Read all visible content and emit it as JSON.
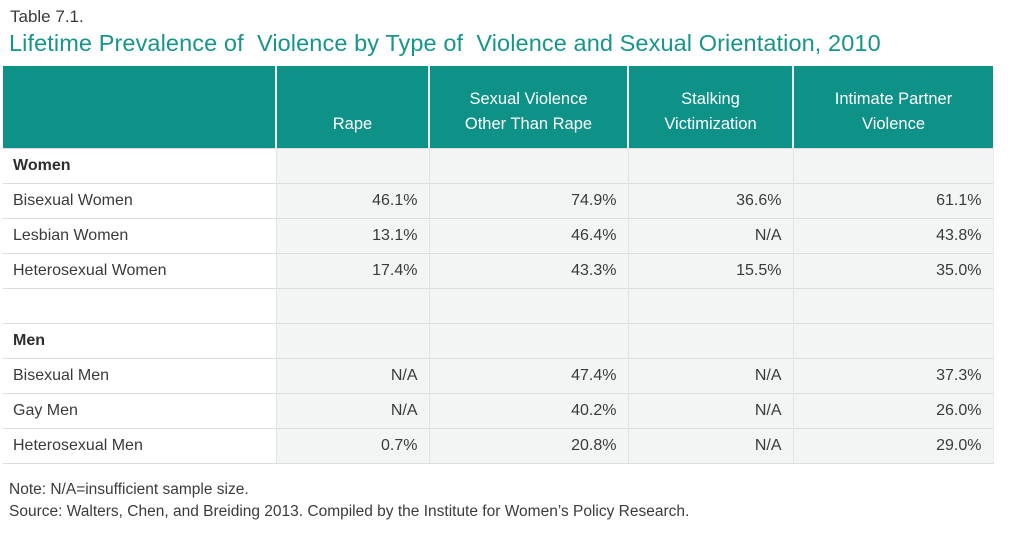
{
  "page": {
    "kicker": "Table 7.1.",
    "title": "Lifetime Prevalence of  Violence by Type of  Violence and Sexual Orientation, 2010",
    "note": "Note: N/A=insufficient sample size.",
    "source": "Source: Walters, Chen, and Breiding 2013. Compiled by the Institute for Women’s Policy Research."
  },
  "colors": {
    "header_bg": "#0E9187",
    "title_text": "#17958B",
    "cell_bg": "#F3F5F4",
    "row_border": "#DCDEDD",
    "body_text": "#3A3A3A"
  },
  "table": {
    "columns": [
      "",
      "Rape",
      "Sexual Violence\nOther Than Rape",
      "Stalking\nVictimization",
      "Intimate Partner\nViolence"
    ],
    "rows": [
      {
        "label": "Women",
        "style": "section",
        "values": [
          "",
          "",
          "",
          ""
        ]
      },
      {
        "label": "Bisexual Women",
        "style": "data",
        "values": [
          "46.1%",
          "74.9%",
          "36.6%",
          "61.1%"
        ]
      },
      {
        "label": "Lesbian Women",
        "style": "data",
        "values": [
          "13.1%",
          "46.4%",
          "N/A",
          "43.8%"
        ]
      },
      {
        "label": "Heterosexual Women",
        "style": "data",
        "values": [
          "17.4%",
          "43.3%",
          "15.5%",
          "35.0%"
        ]
      },
      {
        "label": "",
        "style": "spacer",
        "values": [
          "",
          "",
          "",
          ""
        ]
      },
      {
        "label": "Men",
        "style": "section",
        "values": [
          "",
          "",
          "",
          ""
        ]
      },
      {
        "label": "Bisexual Men",
        "style": "data",
        "values": [
          "N/A",
          "47.4%",
          "N/A",
          "37.3%"
        ]
      },
      {
        "label": "Gay Men",
        "style": "data",
        "values": [
          "N/A",
          "40.2%",
          "N/A",
          "26.0%"
        ]
      },
      {
        "label": "Heterosexual Men",
        "style": "data",
        "values": [
          "0.7%",
          "20.8%",
          "N/A",
          "29.0%"
        ]
      }
    ]
  },
  "chart_data": {
    "type": "table",
    "title": "Lifetime Prevalence of Violence by Type of Violence and Sexual Orientation, 2010",
    "table_number": "Table 7.1.",
    "columns": [
      "Rape",
      "Sexual Violence Other Than Rape",
      "Stalking Victimization",
      "Intimate Partner Violence"
    ],
    "groups": [
      {
        "group": "Women",
        "rows": [
          {
            "category": "Bisexual Women",
            "values": [
              "46.1%",
              "74.9%",
              "36.6%",
              "61.1%"
            ]
          },
          {
            "category": "Lesbian Women",
            "values": [
              "13.1%",
              "46.4%",
              "N/A",
              "43.8%"
            ]
          },
          {
            "category": "Heterosexual Women",
            "values": [
              "17.4%",
              "43.3%",
              "15.5%",
              "35.0%"
            ]
          }
        ]
      },
      {
        "group": "Men",
        "rows": [
          {
            "category": "Bisexual Men",
            "values": [
              "N/A",
              "47.4%",
              "N/A",
              "37.3%"
            ]
          },
          {
            "category": "Gay Men",
            "values": [
              "N/A",
              "40.2%",
              "N/A",
              "26.0%"
            ]
          },
          {
            "category": "Heterosexual Men",
            "values": [
              "0.7%",
              "20.8%",
              "N/A",
              "29.0%"
            ]
          }
        ]
      }
    ],
    "note": "Note: N/A=insufficient sample size.",
    "source": "Source: Walters, Chen, and Breiding 2013. Compiled by the Institute for Women’s Policy Research."
  }
}
